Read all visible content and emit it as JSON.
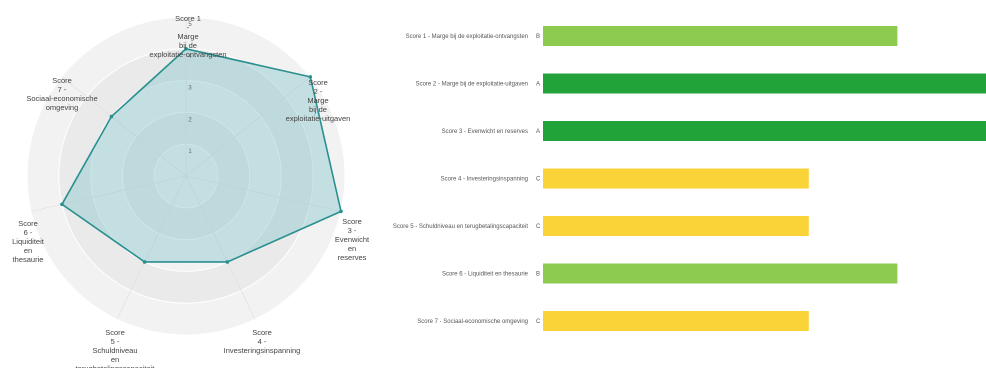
{
  "chart_data": [
    {
      "type": "radar",
      "axes": [
        [
          "Score 1",
          "-",
          "Marge",
          "bij de",
          "exploitatie-ontvangsten"
        ],
        [
          "Score",
          "2 -",
          "Marge",
          "bij de",
          "exploitatie-uitgaven"
        ],
        [
          "Score",
          "3 -",
          "Evenwicht",
          "en",
          "reserves"
        ],
        [
          "Score",
          "4 -",
          "Investeringsinspanning"
        ],
        [
          "Score",
          "5 -",
          "Schuldniveau",
          "en",
          "terugbetalingscapaciteit"
        ],
        [
          "Score",
          "6 -",
          "Liquiditeit",
          "en",
          "thesaurie"
        ],
        [
          "Score",
          "7 -",
          "Sociaal-economische",
          "omgeving"
        ]
      ],
      "values": [
        4,
        5,
        5,
        3,
        3,
        4,
        3
      ],
      "rmax": 5,
      "ticks": [
        "1",
        "2",
        "3",
        "4",
        "5"
      ],
      "colors": {
        "line": "#2a8f8f",
        "fill": "#8cc8cf",
        "ring_outer": "#f2f2f2",
        "ring_inner": "#eaeaea"
      }
    },
    {
      "type": "bar",
      "orientation": "horizontal",
      "categories": [
        "Score 1 - Marge bij de exploitatie-ontvangsten",
        "Score 2 - Marge bij de exploitatie-uitgaven",
        "Score 3 - Evenwicht en reserves",
        "Score 4 - Investeringsinspanning",
        "Score 5 - Schuldniveau en terugbetalingscapaciteit",
        "Score 6 - Liquiditeit en thesaurie",
        "Score 7 - Sociaal-economische omgeving"
      ],
      "grades": [
        "B",
        "A",
        "A",
        "C",
        "C",
        "B",
        "C"
      ],
      "values": [
        4,
        5,
        5,
        3,
        3,
        4,
        3
      ],
      "xlim": [
        0,
        5
      ],
      "grade_colors": {
        "A": "#22a33a",
        "B": "#8ccb50",
        "C": "#f9d338"
      }
    }
  ]
}
